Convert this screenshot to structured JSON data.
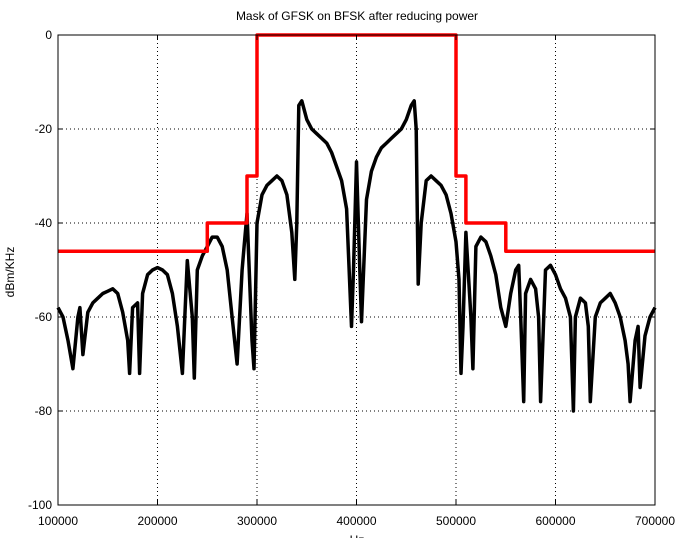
{
  "chart_data": {
    "type": "line",
    "title": "Mask of GFSK on BFSK after reducing power",
    "xlabel": "Hz",
    "ylabel": "dBm/KHz",
    "xlim": [
      100000,
      700000
    ],
    "ylim": [
      -100,
      0
    ],
    "x_ticks": [
      100000,
      200000,
      300000,
      400000,
      500000,
      600000,
      700000
    ],
    "x_tick_labels": [
      "100000",
      "200000",
      "300000",
      "400000",
      "500000",
      "600000",
      "700000"
    ],
    "y_ticks": [
      0,
      -20,
      -40,
      -60,
      -80,
      -100
    ],
    "y_tick_labels": [
      "0",
      "-20",
      "-40",
      "-60",
      "-80",
      "-100"
    ],
    "grid": true,
    "grid_style": "dotted",
    "series": [
      {
        "color": "#000000",
        "style": "spectrum",
        "x": [
          100000,
          105000,
          110000,
          115000,
          120000,
          122000,
          125000,
          130000,
          135000,
          140000,
          145000,
          150000,
          155000,
          160000,
          165000,
          170000,
          172000,
          175000,
          180000,
          182000,
          185000,
          190000,
          195000,
          200000,
          205000,
          210000,
          215000,
          220000,
          225000,
          227000,
          230000,
          235000,
          237000,
          240000,
          245000,
          250000,
          255000,
          260000,
          265000,
          270000,
          275000,
          280000,
          285000,
          287000,
          290000,
          295000,
          297000,
          300000,
          305000,
          310000,
          315000,
          320000,
          325000,
          330000,
          335000,
          338000,
          340000,
          342000,
          345000,
          350000,
          355000,
          360000,
          365000,
          370000,
          375000,
          380000,
          385000,
          390000,
          395000,
          397000,
          400000,
          403000,
          405000,
          410000,
          415000,
          420000,
          425000,
          430000,
          435000,
          440000,
          445000,
          450000,
          455000,
          458000,
          460000,
          462000,
          465000,
          470000,
          475000,
          480000,
          485000,
          490000,
          495000,
          500000,
          503000,
          505000,
          507000,
          510000,
          515000,
          517000,
          520000,
          525000,
          530000,
          535000,
          540000,
          545000,
          550000,
          555000,
          560000,
          563000,
          565000,
          568000,
          570000,
          575000,
          580000,
          583000,
          585000,
          590000,
          595000,
          600000,
          605000,
          610000,
          615000,
          618000,
          620000,
          625000,
          630000,
          633000,
          635000,
          640000,
          645000,
          650000,
          655000,
          660000,
          665000,
          670000,
          673000,
          675000,
          680000,
          683000,
          685000,
          690000,
          695000,
          700000
        ],
        "y": [
          -58,
          -60,
          -65,
          -71,
          -60,
          -58,
          -68,
          -59,
          -57,
          -56,
          -55,
          -54.5,
          -54,
          -55,
          -59,
          -65,
          -72,
          -58,
          -57,
          -72,
          -55,
          -51,
          -50,
          -49.5,
          -50,
          -51,
          -55,
          -62,
          -72,
          -62,
          -48,
          -60,
          -73,
          -50,
          -47,
          -45,
          -43,
          -43,
          -45,
          -50,
          -60,
          -70,
          -50,
          -45,
          -38,
          -65,
          -71,
          -40,
          -34,
          -32,
          -31,
          -30,
          -31,
          -34,
          -42,
          -52,
          -40,
          -15,
          -14,
          -18,
          -20,
          -21,
          -22,
          -23,
          -25,
          -28,
          -31,
          -37,
          -62,
          -50,
          -27,
          -48,
          -61,
          -35,
          -29,
          -26,
          -24,
          -23,
          -22,
          -21,
          -20,
          -18,
          -15,
          -14,
          -20,
          -53,
          -40,
          -31,
          -30,
          -31,
          -32,
          -34,
          -38,
          -44,
          -52,
          -72,
          -62,
          -42,
          -60,
          -71,
          -45,
          -43,
          -44,
          -47,
          -51,
          -58,
          -62,
          -55,
          -50,
          -49,
          -60,
          -78,
          -55,
          -52,
          -54,
          -60,
          -78,
          -50,
          -49,
          -51,
          -54,
          -56,
          -60,
          -80,
          -60,
          -56,
          -57,
          -62,
          -78,
          -60,
          -57,
          -56,
          -55,
          -57,
          -60,
          -65,
          -70,
          -78,
          -65,
          -62,
          -75,
          -64,
          -60,
          -58
        ]
      },
      {
        "color": "#ff0000",
        "style": "mask",
        "x": [
          100000,
          250000,
          250000,
          290000,
          290000,
          300000,
          300000,
          500000,
          500000,
          510000,
          510000,
          550000,
          550000,
          700000
        ],
        "y": [
          -46,
          -46,
          -40,
          -40,
          -30,
          -30,
          0,
          0,
          -30,
          -30,
          -40,
          -40,
          -46,
          -46
        ]
      }
    ]
  }
}
